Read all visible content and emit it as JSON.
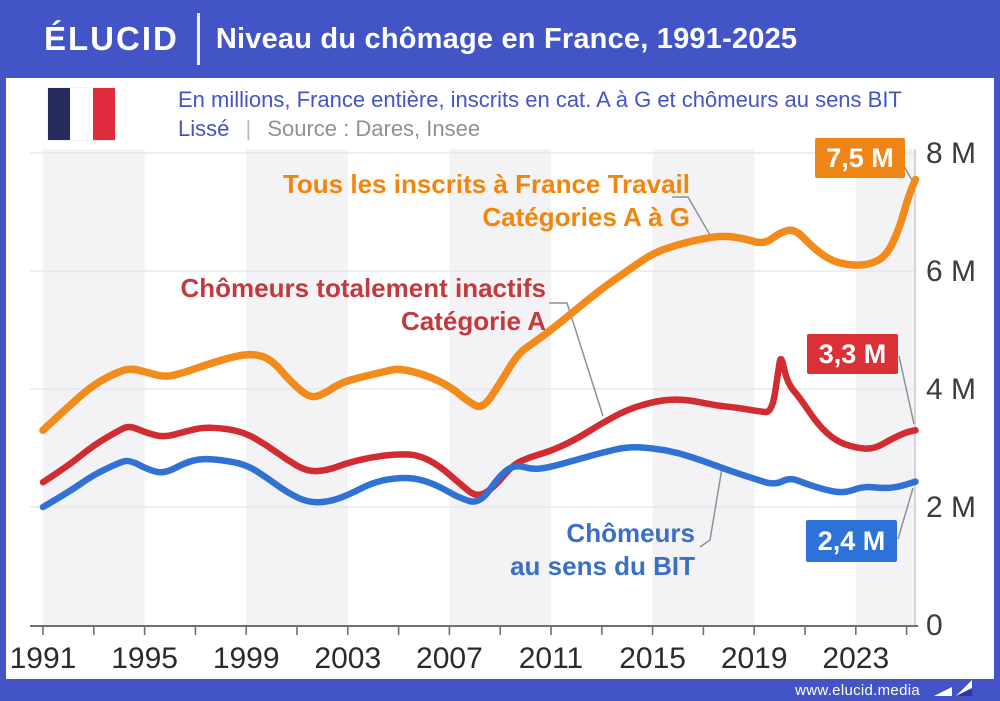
{
  "header": {
    "logo": "ÉLUCID",
    "title": "Niveau du chômage en France, 1991-2025"
  },
  "subtitle": {
    "line1": "En millions, France entière, inscrits en cat. A à G et chômeurs au sens BIT",
    "line2_highlight": "Lissé",
    "line2_separator": "|",
    "line2_source": "Source : Dares, Insee",
    "flag_colors": [
      "#262B5E",
      "#FFFFFF",
      "#E02B3C"
    ]
  },
  "footer": {
    "url": "www.elucid.media"
  },
  "colors": {
    "brand_blue": "#4254C6",
    "band_gray": "#f3f3f5",
    "grid": "#e8e8eb",
    "axis": "#6e6e73",
    "right_border": "#cbcbd0",
    "connector": "#8f8f95",
    "x_label": "#2b2b2e",
    "y_label": "#3c3c40"
  },
  "chart_data": {
    "type": "line",
    "title": "Niveau du chômage en France, 1991-2025",
    "unit": "millions de personnes",
    "source": "Dares, Insee",
    "smoothing_note": "Lissé",
    "x_range": [
      1991,
      2025.35
    ],
    "ylim": [
      0,
      8
    ],
    "x_axis": {
      "labeled_ticks": [
        1991,
        1995,
        1999,
        2003,
        2007,
        2011,
        2015,
        2019,
        2023
      ],
      "minor_tick_step_years": 2
    },
    "y_axis": {
      "ticks": [
        {
          "v": 0,
          "label": "0"
        },
        {
          "v": 2,
          "label": "2 M"
        },
        {
          "v": 4,
          "label": "4 M"
        },
        {
          "v": 6,
          "label": "6 M"
        },
        {
          "v": 8,
          "label": "8 M"
        }
      ]
    },
    "shaded_year_bands": [
      [
        1991,
        1995
      ],
      [
        1999,
        2003
      ],
      [
        2007,
        2011
      ],
      [
        2015,
        2019
      ],
      [
        2023,
        2025.35
      ]
    ],
    "series": [
      {
        "id": "inscrits",
        "name": "Tous les inscrits à France Travail — Catégories A à G",
        "color": "#F28B1B",
        "stroke_width": 7.5,
        "end_value_label": "7,5 M",
        "points": [
          [
            1991,
            3.3
          ],
          [
            1992,
            3.7
          ],
          [
            1993,
            4.08
          ],
          [
            1994,
            4.3
          ],
          [
            1994.5,
            4.35
          ],
          [
            1995.2,
            4.27
          ],
          [
            1995.8,
            4.2
          ],
          [
            1996.5,
            4.27
          ],
          [
            1997.5,
            4.42
          ],
          [
            1998.5,
            4.55
          ],
          [
            1999.3,
            4.6
          ],
          [
            2000,
            4.5
          ],
          [
            2000.8,
            4.1
          ],
          [
            2001.5,
            3.85
          ],
          [
            2002,
            3.9
          ],
          [
            2002.7,
            4.1
          ],
          [
            2003.5,
            4.2
          ],
          [
            2004.5,
            4.3
          ],
          [
            2005,
            4.35
          ],
          [
            2006,
            4.25
          ],
          [
            2007,
            4.05
          ],
          [
            2007.7,
            3.8
          ],
          [
            2008.3,
            3.65
          ],
          [
            2009,
            4.1
          ],
          [
            2009.7,
            4.6
          ],
          [
            2010.3,
            4.78
          ],
          [
            2011,
            5.0
          ],
          [
            2012,
            5.35
          ],
          [
            2013,
            5.7
          ],
          [
            2014,
            6.0
          ],
          [
            2015,
            6.3
          ],
          [
            2016,
            6.45
          ],
          [
            2017,
            6.55
          ],
          [
            2017.8,
            6.6
          ],
          [
            2018.6,
            6.55
          ],
          [
            2019.4,
            6.45
          ],
          [
            2020,
            6.65
          ],
          [
            2020.6,
            6.72
          ],
          [
            2021.3,
            6.4
          ],
          [
            2022,
            6.18
          ],
          [
            2022.7,
            6.1
          ],
          [
            2023.5,
            6.1
          ],
          [
            2024.2,
            6.25
          ],
          [
            2024.7,
            6.7
          ],
          [
            2025.1,
            7.3
          ],
          [
            2025.35,
            7.55
          ]
        ]
      },
      {
        "id": "categorie-a",
        "name": "Chômeurs totalement inactifs — Catégorie A",
        "color": "#D02C31",
        "stroke_width": 6.5,
        "end_value_label": "3,3 M",
        "points": [
          [
            1991,
            2.42
          ],
          [
            1992,
            2.7
          ],
          [
            1993,
            3.05
          ],
          [
            1994,
            3.3
          ],
          [
            1994.4,
            3.38
          ],
          [
            1995.1,
            3.25
          ],
          [
            1995.8,
            3.18
          ],
          [
            1996.6,
            3.28
          ],
          [
            1997.3,
            3.35
          ],
          [
            1998.2,
            3.33
          ],
          [
            1999,
            3.25
          ],
          [
            1999.8,
            3.05
          ],
          [
            2000.6,
            2.8
          ],
          [
            2001.4,
            2.6
          ],
          [
            2002.2,
            2.62
          ],
          [
            2003,
            2.75
          ],
          [
            2004,
            2.85
          ],
          [
            2005,
            2.9
          ],
          [
            2005.8,
            2.88
          ],
          [
            2006.6,
            2.7
          ],
          [
            2007.4,
            2.4
          ],
          [
            2008.1,
            2.15
          ],
          [
            2008.8,
            2.35
          ],
          [
            2009.5,
            2.72
          ],
          [
            2010.2,
            2.85
          ],
          [
            2011,
            2.95
          ],
          [
            2012,
            3.15
          ],
          [
            2013,
            3.42
          ],
          [
            2014,
            3.65
          ],
          [
            2015,
            3.78
          ],
          [
            2015.8,
            3.83
          ],
          [
            2016.6,
            3.8
          ],
          [
            2017.5,
            3.72
          ],
          [
            2018.4,
            3.68
          ],
          [
            2019.2,
            3.62
          ],
          [
            2019.7,
            3.6
          ],
          [
            2019.95,
            4.3
          ],
          [
            2020.05,
            4.6
          ],
          [
            2020.3,
            4.1
          ],
          [
            2020.8,
            3.85
          ],
          [
            2021.5,
            3.4
          ],
          [
            2022.2,
            3.12
          ],
          [
            2023,
            3.0
          ],
          [
            2023.7,
            2.98
          ],
          [
            2024.4,
            3.15
          ],
          [
            2025,
            3.27
          ],
          [
            2025.35,
            3.3
          ]
        ]
      },
      {
        "id": "bit",
        "name": "Chômeurs au sens du BIT",
        "color": "#2F72D4",
        "stroke_width": 6.5,
        "end_value_label": "2,4 M",
        "points": [
          [
            1991,
            2.0
          ],
          [
            1992,
            2.25
          ],
          [
            1993,
            2.55
          ],
          [
            1994,
            2.75
          ],
          [
            1994.4,
            2.8
          ],
          [
            1995.2,
            2.62
          ],
          [
            1995.8,
            2.57
          ],
          [
            1996.6,
            2.75
          ],
          [
            1997.2,
            2.82
          ],
          [
            1998,
            2.8
          ],
          [
            1999,
            2.72
          ],
          [
            1999.8,
            2.5
          ],
          [
            2000.6,
            2.25
          ],
          [
            2001.4,
            2.08
          ],
          [
            2002.2,
            2.08
          ],
          [
            2003,
            2.2
          ],
          [
            2004,
            2.42
          ],
          [
            2005,
            2.5
          ],
          [
            2005.8,
            2.48
          ],
          [
            2006.6,
            2.35
          ],
          [
            2007.4,
            2.15
          ],
          [
            2008.2,
            2.05
          ],
          [
            2009,
            2.55
          ],
          [
            2009.6,
            2.72
          ],
          [
            2010.3,
            2.63
          ],
          [
            2011,
            2.68
          ],
          [
            2012,
            2.8
          ],
          [
            2013,
            2.92
          ],
          [
            2014,
            3.02
          ],
          [
            2015,
            3.0
          ],
          [
            2016,
            2.92
          ],
          [
            2017,
            2.78
          ],
          [
            2018,
            2.62
          ],
          [
            2019,
            2.48
          ],
          [
            2019.8,
            2.37
          ],
          [
            2020.4,
            2.5
          ],
          [
            2021,
            2.4
          ],
          [
            2021.7,
            2.3
          ],
          [
            2022.5,
            2.23
          ],
          [
            2023.3,
            2.35
          ],
          [
            2024,
            2.32
          ],
          [
            2024.6,
            2.33
          ],
          [
            2025.35,
            2.43
          ]
        ]
      }
    ],
    "series_labels": [
      {
        "id": "inscrits",
        "line1": "Tous les inscrits à France Travail",
        "line2": "Catégories A à G",
        "color": "#F2860D"
      },
      {
        "id": "categorie-a",
        "line1": "Chômeurs totalement inactifs",
        "line2": "Catégorie A",
        "color": "#C2393E"
      },
      {
        "id": "bit",
        "line1": "Chômeurs",
        "line2": "au sens du BIT",
        "color": "#3B6FC6"
      }
    ],
    "end_badges": [
      {
        "id": "inscrits",
        "label": "7,5 M",
        "color": "#F08517"
      },
      {
        "id": "categorie-a",
        "label": "3,3 M",
        "color": "#DB3036"
      },
      {
        "id": "bit",
        "label": "2,4 M",
        "color": "#2D72D9"
      }
    ],
    "legend_position": "inline-annotations",
    "grid": "horizontal-only"
  }
}
